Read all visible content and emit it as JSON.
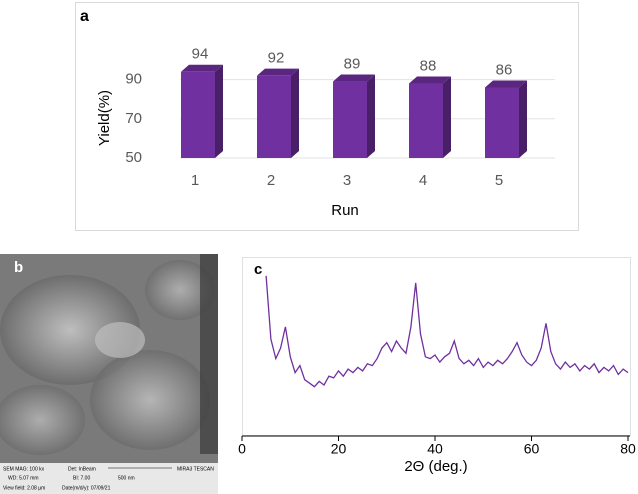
{
  "chart_data": [
    {
      "type": "bar",
      "panel_label": "a",
      "y_label": "Yield(%)",
      "x_label": "Run",
      "categories": [
        "1",
        "2",
        "3",
        "4",
        "5"
      ],
      "values": [
        94,
        92,
        89,
        88,
        86
      ],
      "color": "#7030a0",
      "ylim": [
        50,
        100
      ],
      "yticks": [
        50,
        70,
        90
      ],
      "grid": true
    },
    {
      "type": "line",
      "panel_label": "c",
      "x_label": "2Θ (deg.)",
      "color": "#7030a0",
      "x": [
        5,
        6,
        7,
        8,
        9,
        10,
        11,
        12,
        13,
        14,
        15,
        16,
        17,
        18,
        19,
        20,
        21,
        22,
        23,
        24,
        25,
        26,
        27,
        28,
        29,
        30,
        31,
        32,
        33,
        34,
        35,
        36,
        37,
        38,
        39,
        40,
        41,
        42,
        43,
        44,
        45,
        46,
        47,
        48,
        49,
        50,
        51,
        52,
        53,
        54,
        55,
        56,
        57,
        58,
        59,
        60,
        61,
        62,
        63,
        64,
        65,
        66,
        67,
        68,
        69,
        70,
        71,
        72,
        73,
        74,
        75,
        76,
        77,
        78,
        79,
        80
      ],
      "values": [
        91,
        55,
        44,
        50,
        62,
        45,
        36,
        40,
        32,
        30,
        28,
        31,
        29,
        34,
        33,
        37,
        34,
        38,
        36,
        39,
        37,
        41,
        40,
        44,
        50,
        53,
        48,
        54,
        50,
        47,
        62,
        87,
        58,
        45,
        44,
        46,
        42,
        45,
        47,
        54,
        44,
        41,
        43,
        40,
        44,
        39,
        42,
        40,
        43,
        41,
        44,
        48,
        53,
        46,
        42,
        40,
        43,
        50,
        64,
        48,
        41,
        38,
        42,
        39,
        41,
        37,
        40,
        38,
        41,
        36,
        39,
        37,
        40,
        35,
        38,
        36
      ],
      "xlim": [
        0,
        80
      ],
      "xticks": [
        0,
        20,
        40,
        60,
        80
      ],
      "ylim": [
        0,
        100
      ]
    }
  ],
  "sem_image": {
    "panel_label": "b",
    "info": [
      "SEM MAG: 100 kx",
      "Det: InBeam",
      "MIRA3 TESCAN",
      "WD: 5.07 mm",
      "BI: 7.00",
      "500 nm",
      "View field: 2.08 µm",
      "Date(m/d/y): 07/09/21"
    ]
  }
}
